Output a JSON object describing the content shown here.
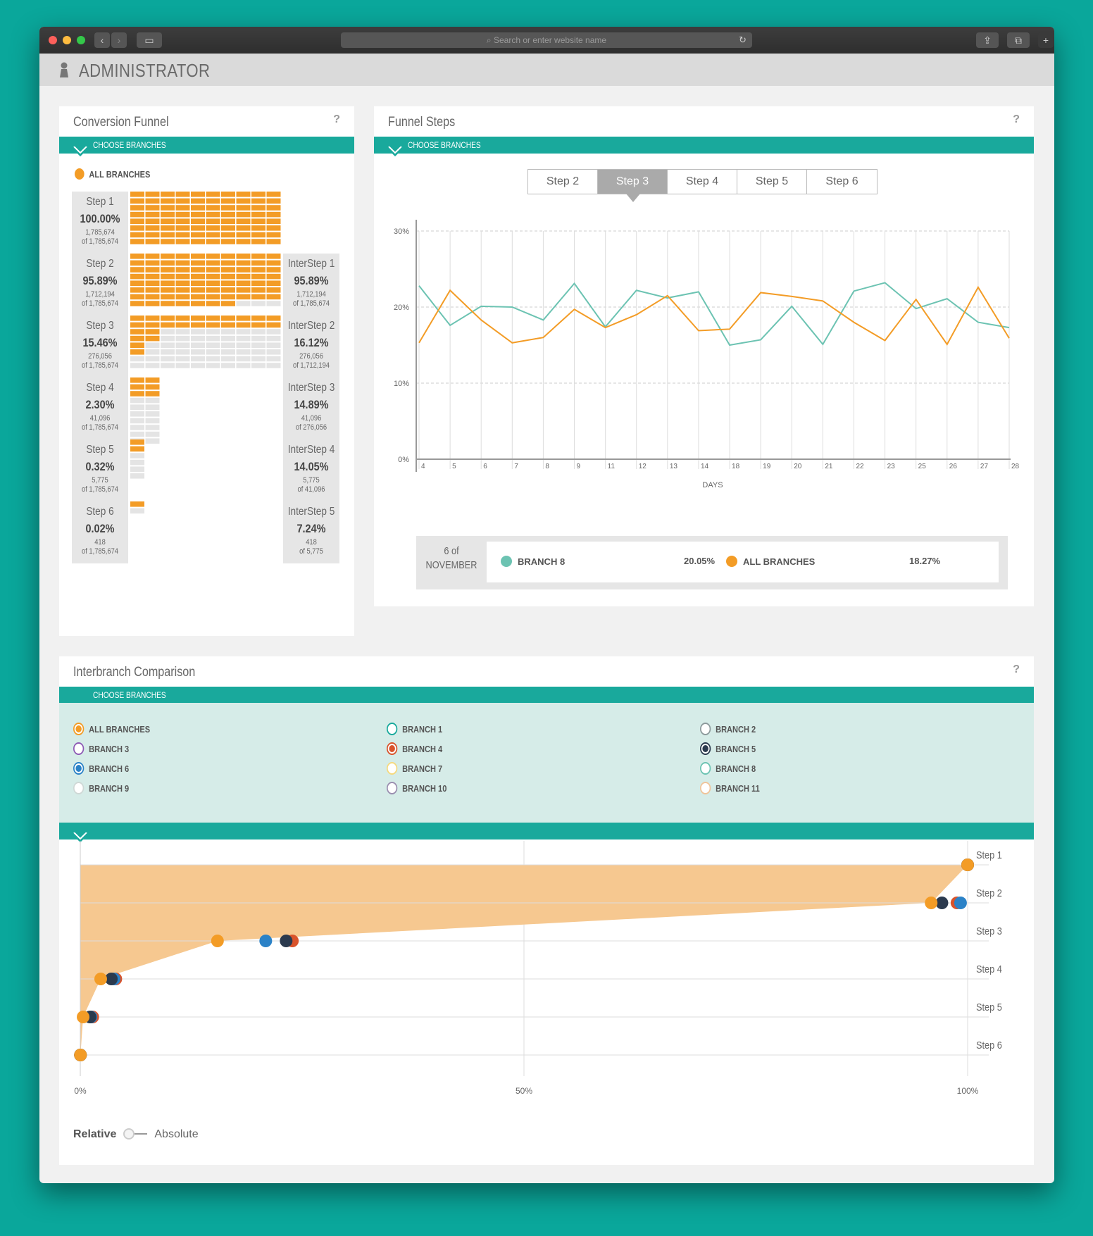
{
  "browser": {
    "url_placeholder": "Search or enter website name"
  },
  "header": {
    "title": "ADMINISTRATOR"
  },
  "funnel": {
    "title": "Conversion Funnel",
    "help": "?",
    "choose_label": "CHOOSE BRANCHES",
    "legend_label": "ALL BRANCHES",
    "steps": [
      {
        "name": "Step 1",
        "pct": "100.00%",
        "count": "1,785,674",
        "of": "of 1,785,674",
        "fill": 1.0
      },
      {
        "name": "Step 2",
        "pct": "95.89%",
        "count": "1,712,194",
        "of": "of 1,785,674",
        "fill": 0.9589
      },
      {
        "name": "Step 3",
        "pct": "15.46%",
        "count": "276,056",
        "of": "of 1,785,674",
        "fill": 0.1546
      },
      {
        "name": "Step 4",
        "pct": "2.30%",
        "count": "41,096",
        "of": "of 1,785,674",
        "fill": 0.023
      },
      {
        "name": "Step 5",
        "pct": "0.32%",
        "count": "5,775",
        "of": "of 1,785,674",
        "fill": 0.0032
      },
      {
        "name": "Step 6",
        "pct": "0.02%",
        "count": "418",
        "of": "of 1,785,674",
        "fill": 0.0002
      }
    ],
    "intersteps": [
      {
        "name": "InterStep 1",
        "pct": "95.89%",
        "count": "1,712,194",
        "of": "of 1,785,674"
      },
      {
        "name": "InterStep 2",
        "pct": "16.12%",
        "count": "276,056",
        "of": "of 1,712,194"
      },
      {
        "name": "InterStep 3",
        "pct": "14.89%",
        "count": "41,096",
        "of": "of 276,056"
      },
      {
        "name": "InterStep 4",
        "pct": "14.05%",
        "count": "5,775",
        "of": "of 41,096"
      },
      {
        "name": "InterStep 5",
        "pct": "7.24%",
        "count": "418",
        "of": "of 5,775"
      }
    ]
  },
  "steps_panel": {
    "title": "Funnel Steps",
    "help": "?",
    "choose_label": "CHOOSE BRANCHES",
    "tabs": [
      "Step 2",
      "Step 3",
      "Step 4",
      "Step 5",
      "Step 6"
    ],
    "active_tab": "Step 3",
    "legend": {
      "date_line1": "6 of",
      "date_line2": "NOVEMBER",
      "series1_name": "BRANCH 8",
      "series1_value": "20.05%",
      "series2_name": "ALL BRANCHES",
      "series2_value": "18.27%"
    }
  },
  "colors": {
    "teal": "#19a99c",
    "orange": "#f39c26",
    "branch8": "#6cc3b2",
    "navy": "#2b3a4e",
    "blue": "#2b82c7",
    "red": "#d9532b"
  },
  "chart_data": [
    {
      "type": "line",
      "xlabel": "DAYS",
      "x": [
        4,
        5,
        6,
        7,
        8,
        9,
        11,
        12,
        13,
        14,
        18,
        19,
        20,
        21,
        22,
        23,
        25,
        26,
        27,
        28
      ],
      "ylim": [
        0,
        30
      ],
      "yticks": [
        "0%",
        "10%",
        "20%",
        "30%"
      ],
      "grid": true,
      "series": [
        {
          "name": "BRANCH 8",
          "color": "#6cc3b2",
          "values": [
            22.8,
            17.6,
            20.1,
            20.0,
            18.3,
            23.1,
            17.4,
            22.2,
            21.2,
            22.0,
            15.0,
            15.7,
            20.1,
            15.1,
            22.1,
            23.2,
            19.8,
            21.1,
            18.0,
            17.3
          ]
        },
        {
          "name": "ALL BRANCHES",
          "color": "#f39c26",
          "values": [
            15.3,
            22.2,
            18.3,
            15.3,
            16.0,
            19.7,
            17.3,
            19.0,
            21.5,
            16.9,
            17.1,
            21.9,
            21.4,
            20.8,
            18.0,
            15.6,
            21.0,
            15.1,
            22.6,
            15.9
          ]
        }
      ]
    },
    {
      "type": "scatter",
      "xticks": [
        "0%",
        "50%",
        "100%"
      ],
      "xlim": [
        0,
        100
      ],
      "categories": [
        "Step 1",
        "Step 2",
        "Step 3",
        "Step 4",
        "Step 5",
        "Step 6"
      ],
      "series": [
        {
          "name": "ALL BRANCHES",
          "color": "#f39c26",
          "values": [
            100.0,
            95.89,
            15.46,
            2.3,
            0.32,
            0.02
          ]
        },
        {
          "name": "BRANCH 4",
          "color": "#d9532b",
          "values": [
            100.0,
            98.8,
            23.9,
            4.0,
            1.4,
            0.02
          ]
        },
        {
          "name": "BRANCH 5",
          "color": "#2b3a4e",
          "values": [
            100.0,
            97.1,
            23.2,
            3.5,
            1.1,
            0.02
          ]
        },
        {
          "name": "BRANCH 6",
          "color": "#2b82c7",
          "values": [
            100.0,
            99.2,
            20.9,
            3.8,
            1.2,
            0.02
          ]
        }
      ]
    }
  ],
  "interbranch": {
    "title": "Interbranch Comparison",
    "help": "?",
    "choose_label": "CHOOSE BRANCHES",
    "branches": [
      {
        "label": "ALL BRANCHES",
        "color": "#f39c26",
        "checked": true
      },
      {
        "label": "BRANCH 1",
        "color": "#19a99c",
        "checked": false
      },
      {
        "label": "BRANCH 2",
        "color": "#8d9a9c",
        "checked": false
      },
      {
        "label": "BRANCH 3",
        "color": "#8e5bb5",
        "checked": false
      },
      {
        "label": "BRANCH 4",
        "color": "#d9532b",
        "checked": true
      },
      {
        "label": "BRANCH 5",
        "color": "#2b3a4e",
        "checked": true
      },
      {
        "label": "BRANCH 6",
        "color": "#2b82c7",
        "checked": true
      },
      {
        "label": "BRANCH 7",
        "color": "#f5d97e",
        "checked": false
      },
      {
        "label": "BRANCH 8",
        "color": "#6cc3b2",
        "checked": false
      },
      {
        "label": "BRANCH 9",
        "color": "#cfd8d6",
        "checked": false
      },
      {
        "label": "BRANCH 10",
        "color": "#9b8fb0",
        "checked": false
      },
      {
        "label": "BRANCH 11",
        "color": "#f0c49a",
        "checked": false
      }
    ],
    "toggle_relative": "Relative",
    "toggle_absolute": "Absolute"
  }
}
